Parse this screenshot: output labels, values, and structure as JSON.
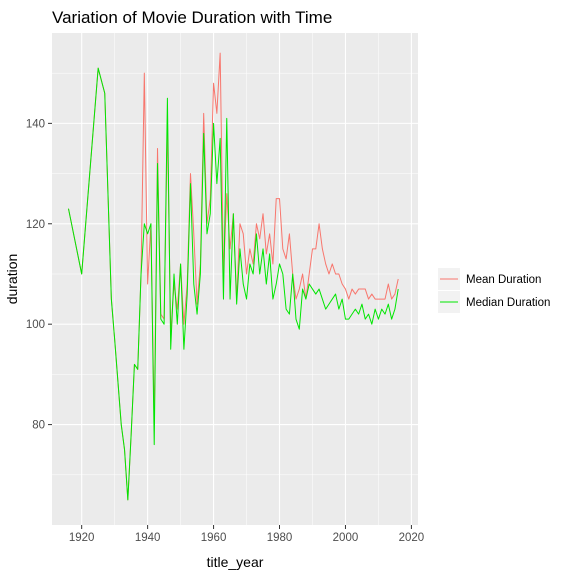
{
  "chart_data": {
    "type": "line",
    "title": "Variation of Movie Duration with Time",
    "xlabel": "title_year",
    "ylabel": "duration",
    "xlim": [
      1911,
      2022
    ],
    "ylim": [
      60,
      158
    ],
    "xticks": [
      1920,
      1940,
      1960,
      1980,
      2000,
      2020
    ],
    "yticks": [
      80,
      100,
      120,
      140
    ],
    "xtick_labels": [
      "1920",
      "1940",
      "1960",
      "1980",
      "2000",
      "2020"
    ],
    "ytick_labels": [
      "80",
      "100",
      "120",
      "140"
    ],
    "grid": true,
    "legend_position": "right",
    "series": [
      {
        "name": "Mean Duration",
        "color": "#F8766D",
        "x": [
          1916,
          1920,
          1925,
          1927,
          1929,
          1930,
          1932,
          1933,
          1934,
          1935,
          1936,
          1937,
          1938,
          1939,
          1940,
          1941,
          1942,
          1943,
          1944,
          1945,
          1946,
          1947,
          1948,
          1949,
          1950,
          1951,
          1952,
          1953,
          1954,
          1955,
          1956,
          1957,
          1958,
          1959,
          1960,
          1961,
          1962,
          1963,
          1964,
          1965,
          1966,
          1967,
          1968,
          1969,
          1970,
          1971,
          1972,
          1973,
          1974,
          1975,
          1976,
          1977,
          1978,
          1979,
          1980,
          1981,
          1982,
          1983,
          1984,
          1985,
          1986,
          1987,
          1988,
          1989,
          1990,
          1991,
          1992,
          1993,
          1994,
          1995,
          1996,
          1997,
          1998,
          1999,
          2000,
          2001,
          2002,
          2003,
          2004,
          2005,
          2006,
          2007,
          2008,
          2009,
          2010,
          2011,
          2012,
          2013,
          2014,
          2015,
          2016
        ],
        "y": [
          123,
          110,
          151,
          146,
          105,
          97,
          80,
          75,
          65,
          78,
          92,
          91,
          110,
          150,
          108,
          120,
          80,
          135,
          102,
          101,
          140,
          98,
          108,
          103,
          112,
          100,
          108,
          130,
          118,
          104,
          112,
          142,
          120,
          125,
          148,
          142,
          154,
          110,
          126,
          115,
          122,
          105,
          120,
          118,
          110,
          115,
          112,
          120,
          117,
          122,
          114,
          118,
          112,
          125,
          125,
          115,
          113,
          118,
          110,
          105,
          107,
          110,
          105,
          110,
          115,
          115,
          120,
          115,
          112,
          110,
          112,
          110,
          110,
          108,
          107,
          105,
          107,
          106,
          107,
          107,
          107,
          105,
          106,
          105,
          105,
          105,
          105,
          108,
          105,
          106,
          109
        ]
      },
      {
        "name": "Median Duration",
        "color": "#00E600",
        "x": [
          1916,
          1920,
          1925,
          1927,
          1929,
          1930,
          1932,
          1933,
          1934,
          1935,
          1936,
          1937,
          1938,
          1939,
          1940,
          1941,
          1942,
          1943,
          1944,
          1945,
          1946,
          1947,
          1948,
          1949,
          1950,
          1951,
          1952,
          1953,
          1954,
          1955,
          1956,
          1957,
          1958,
          1959,
          1960,
          1961,
          1962,
          1963,
          1964,
          1965,
          1966,
          1967,
          1968,
          1969,
          1970,
          1971,
          1972,
          1973,
          1974,
          1975,
          1976,
          1977,
          1978,
          1979,
          1980,
          1981,
          1982,
          1983,
          1984,
          1985,
          1986,
          1987,
          1988,
          1989,
          1990,
          1991,
          1992,
          1993,
          1994,
          1995,
          1996,
          1997,
          1998,
          1999,
          2000,
          2001,
          2002,
          2003,
          2004,
          2005,
          2006,
          2007,
          2008,
          2009,
          2010,
          2011,
          2012,
          2013,
          2014,
          2015,
          2016
        ],
        "y": [
          123,
          110,
          151,
          146,
          105,
          97,
          80,
          75,
          65,
          78,
          92,
          91,
          110,
          120,
          118,
          120,
          76,
          132,
          101,
          100,
          145,
          95,
          110,
          100,
          112,
          95,
          106,
          128,
          108,
          102,
          110,
          138,
          118,
          122,
          140,
          128,
          137,
          105,
          141,
          105,
          122,
          104,
          115,
          108,
          105,
          112,
          110,
          118,
          110,
          115,
          108,
          114,
          105,
          108,
          112,
          110,
          103,
          102,
          110,
          101,
          99,
          107,
          105,
          108,
          107,
          106,
          107,
          105,
          103,
          104,
          105,
          106,
          103,
          105,
          101,
          101,
          102,
          103,
          102,
          104,
          101,
          102,
          100,
          103,
          101,
          103,
          102,
          104,
          101,
          103,
          107
        ]
      }
    ]
  }
}
